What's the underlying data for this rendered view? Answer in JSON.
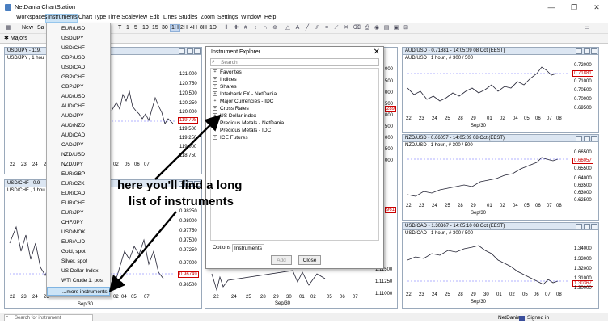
{
  "window": {
    "title": "NetDania ChartStation",
    "minimize_glyph": "—",
    "maximize_glyph": "❐",
    "close_glyph": "✕"
  },
  "menu": [
    "Workspaces",
    "Instruments",
    "Chart Type",
    "Time Scale",
    "View",
    "Edit",
    "Lines",
    "Studies",
    "Zoom",
    "Settings",
    "Window",
    "Help"
  ],
  "toolbar": {
    "new_label": "New",
    "save_label": "Sa",
    "timeframes": [
      "T",
      "1",
      "5",
      "10",
      "15",
      "30",
      "1H",
      "2H",
      "4H",
      "8H",
      "1D"
    ],
    "selected_timeframe": "1H"
  },
  "tabs": {
    "majors": "Majors"
  },
  "dropdown": {
    "items": [
      "EUR/USD",
      "USD/JPY",
      "USD/CHF",
      "GBP/USD",
      "USD/CAD",
      "GBP/CHF",
      "GBP/JPY",
      "AUD/USD",
      "AUD/CHF",
      "AUD/JPY",
      "AUD/NZD",
      "AUD/CAD",
      "CAD/JPY",
      "NZD/USD",
      "NZD/JPY",
      "EUR/GBP",
      "EUR/CZK",
      "EUR/CAD",
      "EUR/CHF",
      "EUR/JPY",
      "CHF/JPY",
      "USD/NOK",
      "EUR/AUD",
      "Gold, spot",
      "Silver, spot",
      "US Dollar Index",
      "WTI Crude 1. pos."
    ],
    "more": "...more instruments"
  },
  "explorer": {
    "title": "Instrument Explorer",
    "search_placeholder": "Search",
    "tree": [
      "Favorites",
      "Indices",
      "Shares",
      "Interbank FX - NetDania",
      "Major Currencies - IDC",
      "Cross Rates",
      "US Dollar index",
      "Precious Metals - NetDania",
      "Precious Metals - IDC",
      "ICE Futures"
    ],
    "tabs": [
      "Options",
      "Instruments"
    ],
    "add_button": "Add",
    "close_button": "Close"
  },
  "annotation": {
    "line1": "here you'll find a long",
    "line2": "list of instruments"
  },
  "panels": {
    "usdjpy": {
      "title": "USD/JPY - 119.",
      "sub": "USD/JPY , 1 hou",
      "y_ticks": [
        "121.000",
        "120.750",
        "120.500",
        "120.250",
        "120.000",
        "119.500",
        "119.250",
        "119.000",
        "118.750"
      ],
      "last": "119.798",
      "x_ticks": [
        "22",
        "23",
        "24",
        "25",
        "28",
        "29",
        "30",
        "01",
        "02",
        "05",
        "06",
        "07"
      ]
    },
    "usdchf": {
      "title": "USD/CHF - 0.9",
      "sub": "USD/CHF , 1 hou",
      "y_ticks": [
        "0.98250",
        "0.98000",
        "0.97750",
        "0.97500",
        "0.97250",
        "0.97000",
        "0.96750",
        "0.96500"
      ],
      "last": "0.96749",
      "x_ticks": [
        "22",
        "23",
        "24",
        "25",
        "28",
        "29",
        "30",
        "02",
        "04",
        "05",
        "06",
        "07"
      ],
      "x_month": "Sep/30"
    },
    "middle": {
      "y_ticks_top": [
        "000",
        "500",
        "000",
        "500",
        "000",
        "500",
        "000",
        "500",
        "000"
      ],
      "top_last": "289",
      "y_ticks_bottom": [
        "1.11750",
        "1.11500",
        "1.11250",
        "1.11000"
      ],
      "bottom_last": "961",
      "x_ticks": [
        "22",
        "23",
        "24",
        "25",
        "28",
        "29",
        "30",
        "01",
        "02",
        "05",
        "06",
        "07"
      ],
      "x_month": "Sep/30"
    },
    "audusd": {
      "title": "AUD/USD - 0.71881 - 14:05:09  08 Oct (EEST)",
      "sub": "AUD/USD , 1 hour , # 300 / 500",
      "y_ticks": [
        "0.72000",
        "0.71500",
        "0.71000",
        "0.70500",
        "0.70000",
        "0.69500"
      ],
      "last": "0.71881",
      "x_ticks": [
        "22",
        "23",
        "24",
        "25",
        "28",
        "29",
        "01",
        "02",
        "04",
        "05",
        "06",
        "07",
        "08"
      ],
      "x_month": "Sep/30"
    },
    "nzdusd": {
      "title": "NZD/USD - 0.66057 - 14:05:09  08 Oct (EEST)",
      "sub": "NZD/USD , 1 hour , # 300 / 500",
      "y_ticks": [
        "0.66500",
        "0.66000",
        "0.65500",
        "0.64000",
        "0.63500",
        "0.63000",
        "0.62500"
      ],
      "last": "0.66057",
      "x_ticks": [
        "22",
        "23",
        "24",
        "25",
        "28",
        "29",
        "01",
        "02",
        "04",
        "05",
        "06",
        "07",
        "08"
      ],
      "x_month": "Sep/30"
    },
    "usdcad": {
      "title": "USD/CAD - 1.30367 - 14:05:10  08 Oct (EEST)",
      "sub": "USD/CAD , 1 hour , # 300 / 500",
      "y_ticks": [
        "1.34000",
        "1.33000",
        "1.32000",
        "1.31000",
        "1.30000"
      ],
      "last": "1.30367",
      "x_ticks": [
        "22",
        "23",
        "24",
        "25",
        "28",
        "29",
        "30",
        "01",
        "02",
        "05",
        "06",
        "07",
        "08"
      ],
      "x_month": "Sep/30"
    }
  },
  "status": {
    "search_placeholder": "Search for instrument",
    "provider": "NetDania",
    "signed": "Signed in"
  }
}
